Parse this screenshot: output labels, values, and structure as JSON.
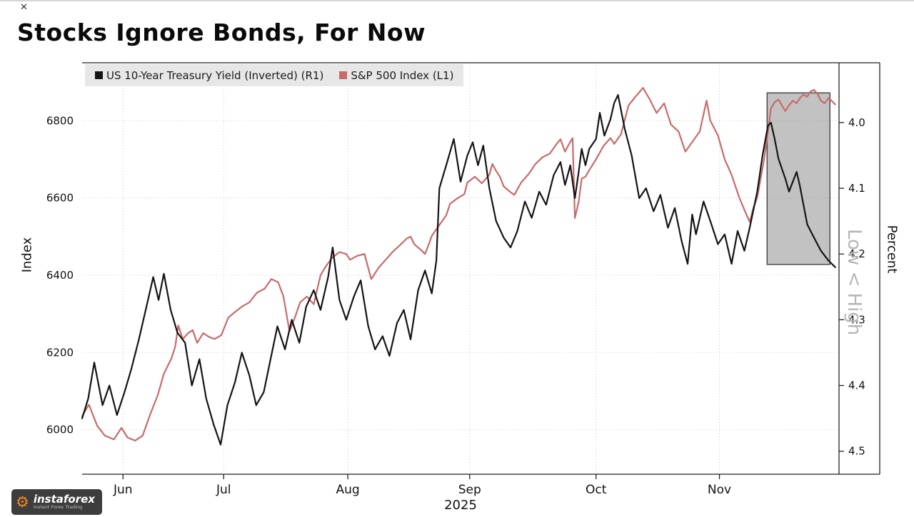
{
  "icons": {
    "close": "✕",
    "gear": "⚙"
  },
  "logo": {
    "name": "instaforex",
    "tagline": "Instant Forex Trading"
  },
  "chart_data": {
    "type": "line",
    "title": "Stocks Ignore Bonds, For Now",
    "legend_position": "top-left",
    "grid": "dotted",
    "x_axis": {
      "year_label": "2025",
      "ticks": [
        {
          "pos": 0.054,
          "label": "Jun"
        },
        {
          "pos": 0.187,
          "label": "Jul"
        },
        {
          "pos": 0.351,
          "label": "Aug"
        },
        {
          "pos": 0.512,
          "label": "Sep"
        },
        {
          "pos": 0.679,
          "label": "Oct"
        },
        {
          "pos": 0.842,
          "label": "Nov"
        }
      ]
    },
    "left_axis": {
      "label": "Index",
      "range": {
        "min": 5885,
        "max": 6950
      },
      "ticks": [
        {
          "v": 6800,
          "label": "6800"
        },
        {
          "v": 6600,
          "label": "6600"
        },
        {
          "v": 6400,
          "label": "6400"
        },
        {
          "v": 6200,
          "label": "6200"
        },
        {
          "v": 6000,
          "label": "6000"
        }
      ]
    },
    "right_axis": {
      "label": "Percent",
      "secondary_label": "Low < High",
      "inverted": true,
      "range": {
        "top": 3.909,
        "bottom": 4.535
      },
      "ticks": [
        {
          "v": 4.0,
          "label": "4.0"
        },
        {
          "v": 4.1,
          "label": "4.1"
        },
        {
          "v": 4.2,
          "label": "4.2"
        },
        {
          "v": 4.3,
          "label": "4.3"
        },
        {
          "v": 4.4,
          "label": "4.4"
        },
        {
          "v": 4.5,
          "label": "4.5"
        }
      ]
    },
    "highlight_box": {
      "x0": 0.905,
      "x1": 0.988,
      "v_top": 6872,
      "v_bottom": 6428,
      "fill": "#8f8f8f",
      "opacity": 0.55,
      "border": "#4a4a4a"
    },
    "series": [
      {
        "name": "US 10-Year Treasury Yield (Inverted) (R1)",
        "color": "#141414",
        "axis": "right",
        "points": [
          [
            0.0,
            4.45
          ],
          [
            0.008,
            4.42
          ],
          [
            0.016,
            4.365
          ],
          [
            0.027,
            4.43
          ],
          [
            0.036,
            4.4
          ],
          [
            0.046,
            4.445
          ],
          [
            0.056,
            4.41
          ],
          [
            0.065,
            4.375
          ],
          [
            0.075,
            4.33
          ],
          [
            0.085,
            4.28
          ],
          [
            0.094,
            4.235
          ],
          [
            0.101,
            4.27
          ],
          [
            0.108,
            4.23
          ],
          [
            0.117,
            4.285
          ],
          [
            0.126,
            4.32
          ],
          [
            0.136,
            4.335
          ],
          [
            0.145,
            4.4
          ],
          [
            0.155,
            4.36
          ],
          [
            0.164,
            4.42
          ],
          [
            0.174,
            4.46
          ],
          [
            0.183,
            4.49
          ],
          [
            0.192,
            4.43
          ],
          [
            0.202,
            4.395
          ],
          [
            0.211,
            4.35
          ],
          [
            0.221,
            4.385
          ],
          [
            0.23,
            4.43
          ],
          [
            0.24,
            4.41
          ],
          [
            0.249,
            4.36
          ],
          [
            0.258,
            4.31
          ],
          [
            0.268,
            4.345
          ],
          [
            0.277,
            4.3
          ],
          [
            0.287,
            4.335
          ],
          [
            0.296,
            4.28
          ],
          [
            0.306,
            4.255
          ],
          [
            0.315,
            4.285
          ],
          [
            0.325,
            4.235
          ],
          [
            0.331,
            4.19
          ],
          [
            0.34,
            4.27
          ],
          [
            0.349,
            4.3
          ],
          [
            0.359,
            4.265
          ],
          [
            0.368,
            4.24
          ],
          [
            0.378,
            4.31
          ],
          [
            0.387,
            4.345
          ],
          [
            0.397,
            4.325
          ],
          [
            0.406,
            4.355
          ],
          [
            0.416,
            4.305
          ],
          [
            0.425,
            4.285
          ],
          [
            0.434,
            4.33
          ],
          [
            0.444,
            4.255
          ],
          [
            0.453,
            4.225
          ],
          [
            0.462,
            4.26
          ],
          [
            0.468,
            4.21
          ],
          [
            0.472,
            4.1
          ],
          [
            0.481,
            4.065
          ],
          [
            0.491,
            4.025
          ],
          [
            0.5,
            4.09
          ],
          [
            0.509,
            4.05
          ],
          [
            0.516,
            4.03
          ],
          [
            0.523,
            4.065
          ],
          [
            0.53,
            4.035
          ],
          [
            0.538,
            4.1
          ],
          [
            0.547,
            4.15
          ],
          [
            0.557,
            4.175
          ],
          [
            0.566,
            4.19
          ],
          [
            0.575,
            4.165
          ],
          [
            0.585,
            4.12
          ],
          [
            0.594,
            4.145
          ],
          [
            0.604,
            4.105
          ],
          [
            0.613,
            4.125
          ],
          [
            0.623,
            4.08
          ],
          [
            0.632,
            4.06
          ],
          [
            0.638,
            4.095
          ],
          [
            0.645,
            4.065
          ],
          [
            0.651,
            4.115
          ],
          [
            0.656,
            4.075
          ],
          [
            0.66,
            4.04
          ],
          [
            0.665,
            4.065
          ],
          [
            0.67,
            4.04
          ],
          [
            0.679,
            4.025
          ],
          [
            0.684,
            3.985
          ],
          [
            0.69,
            4.02
          ],
          [
            0.698,
            3.995
          ],
          [
            0.703,
            3.97
          ],
          [
            0.708,
            3.958
          ],
          [
            0.717,
            4.01
          ],
          [
            0.726,
            4.05
          ],
          [
            0.736,
            4.115
          ],
          [
            0.745,
            4.1
          ],
          [
            0.755,
            4.135
          ],
          [
            0.764,
            4.11
          ],
          [
            0.774,
            4.16
          ],
          [
            0.783,
            4.13
          ],
          [
            0.792,
            4.18
          ],
          [
            0.8,
            4.215
          ],
          [
            0.806,
            4.14
          ],
          [
            0.811,
            4.17
          ],
          [
            0.821,
            4.12
          ],
          [
            0.83,
            4.15
          ],
          [
            0.84,
            4.185
          ],
          [
            0.849,
            4.17
          ],
          [
            0.858,
            4.215
          ],
          [
            0.866,
            4.165
          ],
          [
            0.875,
            4.195
          ],
          [
            0.882,
            4.16
          ],
          [
            0.892,
            4.105
          ],
          [
            0.899,
            4.05
          ],
          [
            0.906,
            4.005
          ],
          [
            0.91,
            4.0
          ],
          [
            0.915,
            4.025
          ],
          [
            0.92,
            4.055
          ],
          [
            0.929,
            4.085
          ],
          [
            0.934,
            4.105
          ],
          [
            0.939,
            4.09
          ],
          [
            0.944,
            4.075
          ],
          [
            0.948,
            4.095
          ],
          [
            0.953,
            4.125
          ],
          [
            0.958,
            4.155
          ],
          [
            0.967,
            4.175
          ],
          [
            0.976,
            4.195
          ],
          [
            0.986,
            4.21
          ],
          [
            0.995,
            4.22
          ]
        ]
      },
      {
        "name": "S&P 500 Index (L1)",
        "color": "#c96a6a",
        "axis": "left",
        "points": [
          [
            0.0,
            6035
          ],
          [
            0.009,
            6065
          ],
          [
            0.02,
            6010
          ],
          [
            0.03,
            5985
          ],
          [
            0.042,
            5975
          ],
          [
            0.052,
            6005
          ],
          [
            0.06,
            5980
          ],
          [
            0.07,
            5972
          ],
          [
            0.08,
            5985
          ],
          [
            0.09,
            6040
          ],
          [
            0.1,
            6090
          ],
          [
            0.108,
            6145
          ],
          [
            0.118,
            6185
          ],
          [
            0.123,
            6215
          ],
          [
            0.127,
            6270
          ],
          [
            0.133,
            6235
          ],
          [
            0.14,
            6250
          ],
          [
            0.146,
            6258
          ],
          [
            0.152,
            6225
          ],
          [
            0.16,
            6250
          ],
          [
            0.168,
            6240
          ],
          [
            0.175,
            6235
          ],
          [
            0.184,
            6245
          ],
          [
            0.193,
            6290
          ],
          [
            0.202,
            6305
          ],
          [
            0.212,
            6320
          ],
          [
            0.221,
            6330
          ],
          [
            0.231,
            6355
          ],
          [
            0.241,
            6365
          ],
          [
            0.25,
            6390
          ],
          [
            0.259,
            6382
          ],
          [
            0.266,
            6345
          ],
          [
            0.274,
            6255
          ],
          [
            0.281,
            6290
          ],
          [
            0.288,
            6330
          ],
          [
            0.297,
            6345
          ],
          [
            0.306,
            6325
          ],
          [
            0.315,
            6400
          ],
          [
            0.321,
            6420
          ],
          [
            0.33,
            6445
          ],
          [
            0.34,
            6460
          ],
          [
            0.349,
            6455
          ],
          [
            0.354,
            6440
          ],
          [
            0.363,
            6450
          ],
          [
            0.373,
            6455
          ],
          [
            0.382,
            6390
          ],
          [
            0.392,
            6420
          ],
          [
            0.401,
            6440
          ],
          [
            0.41,
            6460
          ],
          [
            0.42,
            6478
          ],
          [
            0.429,
            6495
          ],
          [
            0.434,
            6500
          ],
          [
            0.439,
            6480
          ],
          [
            0.448,
            6465
          ],
          [
            0.453,
            6455
          ],
          [
            0.458,
            6480
          ],
          [
            0.462,
            6502
          ],
          [
            0.472,
            6530
          ],
          [
            0.481,
            6555
          ],
          [
            0.486,
            6585
          ],
          [
            0.495,
            6598
          ],
          [
            0.505,
            6610
          ],
          [
            0.509,
            6640
          ],
          [
            0.519,
            6655
          ],
          [
            0.528,
            6638
          ],
          [
            0.538,
            6660
          ],
          [
            0.542,
            6688
          ],
          [
            0.547,
            6670
          ],
          [
            0.552,
            6655
          ],
          [
            0.557,
            6630
          ],
          [
            0.566,
            6615
          ],
          [
            0.571,
            6608
          ],
          [
            0.58,
            6640
          ],
          [
            0.59,
            6662
          ],
          [
            0.599,
            6688
          ],
          [
            0.608,
            6705
          ],
          [
            0.618,
            6715
          ],
          [
            0.627,
            6740
          ],
          [
            0.632,
            6752
          ],
          [
            0.638,
            6720
          ],
          [
            0.642,
            6735
          ],
          [
            0.648,
            6755
          ],
          [
            0.651,
            6548
          ],
          [
            0.656,
            6590
          ],
          [
            0.66,
            6650
          ],
          [
            0.665,
            6655
          ],
          [
            0.67,
            6672
          ],
          [
            0.679,
            6700
          ],
          [
            0.689,
            6735
          ],
          [
            0.698,
            6755
          ],
          [
            0.703,
            6740
          ],
          [
            0.712,
            6765
          ],
          [
            0.722,
            6840
          ],
          [
            0.731,
            6862
          ],
          [
            0.741,
            6885
          ],
          [
            0.75,
            6855
          ],
          [
            0.759,
            6820
          ],
          [
            0.769,
            6845
          ],
          [
            0.778,
            6790
          ],
          [
            0.788,
            6772
          ],
          [
            0.797,
            6720
          ],
          [
            0.806,
            6745
          ],
          [
            0.816,
            6772
          ],
          [
            0.825,
            6852
          ],
          [
            0.83,
            6800
          ],
          [
            0.84,
            6762
          ],
          [
            0.849,
            6700
          ],
          [
            0.858,
            6660
          ],
          [
            0.868,
            6602
          ],
          [
            0.877,
            6560
          ],
          [
            0.882,
            6538
          ],
          [
            0.887,
            6575
          ],
          [
            0.892,
            6602
          ],
          [
            0.901,
            6700
          ],
          [
            0.906,
            6770
          ],
          [
            0.91,
            6832
          ],
          [
            0.915,
            6848
          ],
          [
            0.92,
            6855
          ],
          [
            0.925,
            6838
          ],
          [
            0.929,
            6825
          ],
          [
            0.934,
            6840
          ],
          [
            0.939,
            6852
          ],
          [
            0.944,
            6845
          ],
          [
            0.948,
            6858
          ],
          [
            0.953,
            6868
          ],
          [
            0.958,
            6862
          ],
          [
            0.962,
            6875
          ],
          [
            0.967,
            6880
          ],
          [
            0.972,
            6868
          ],
          [
            0.976,
            6852
          ],
          [
            0.981,
            6845
          ],
          [
            0.986,
            6858
          ],
          [
            0.99,
            6852
          ],
          [
            0.995,
            6842
          ]
        ]
      }
    ]
  }
}
